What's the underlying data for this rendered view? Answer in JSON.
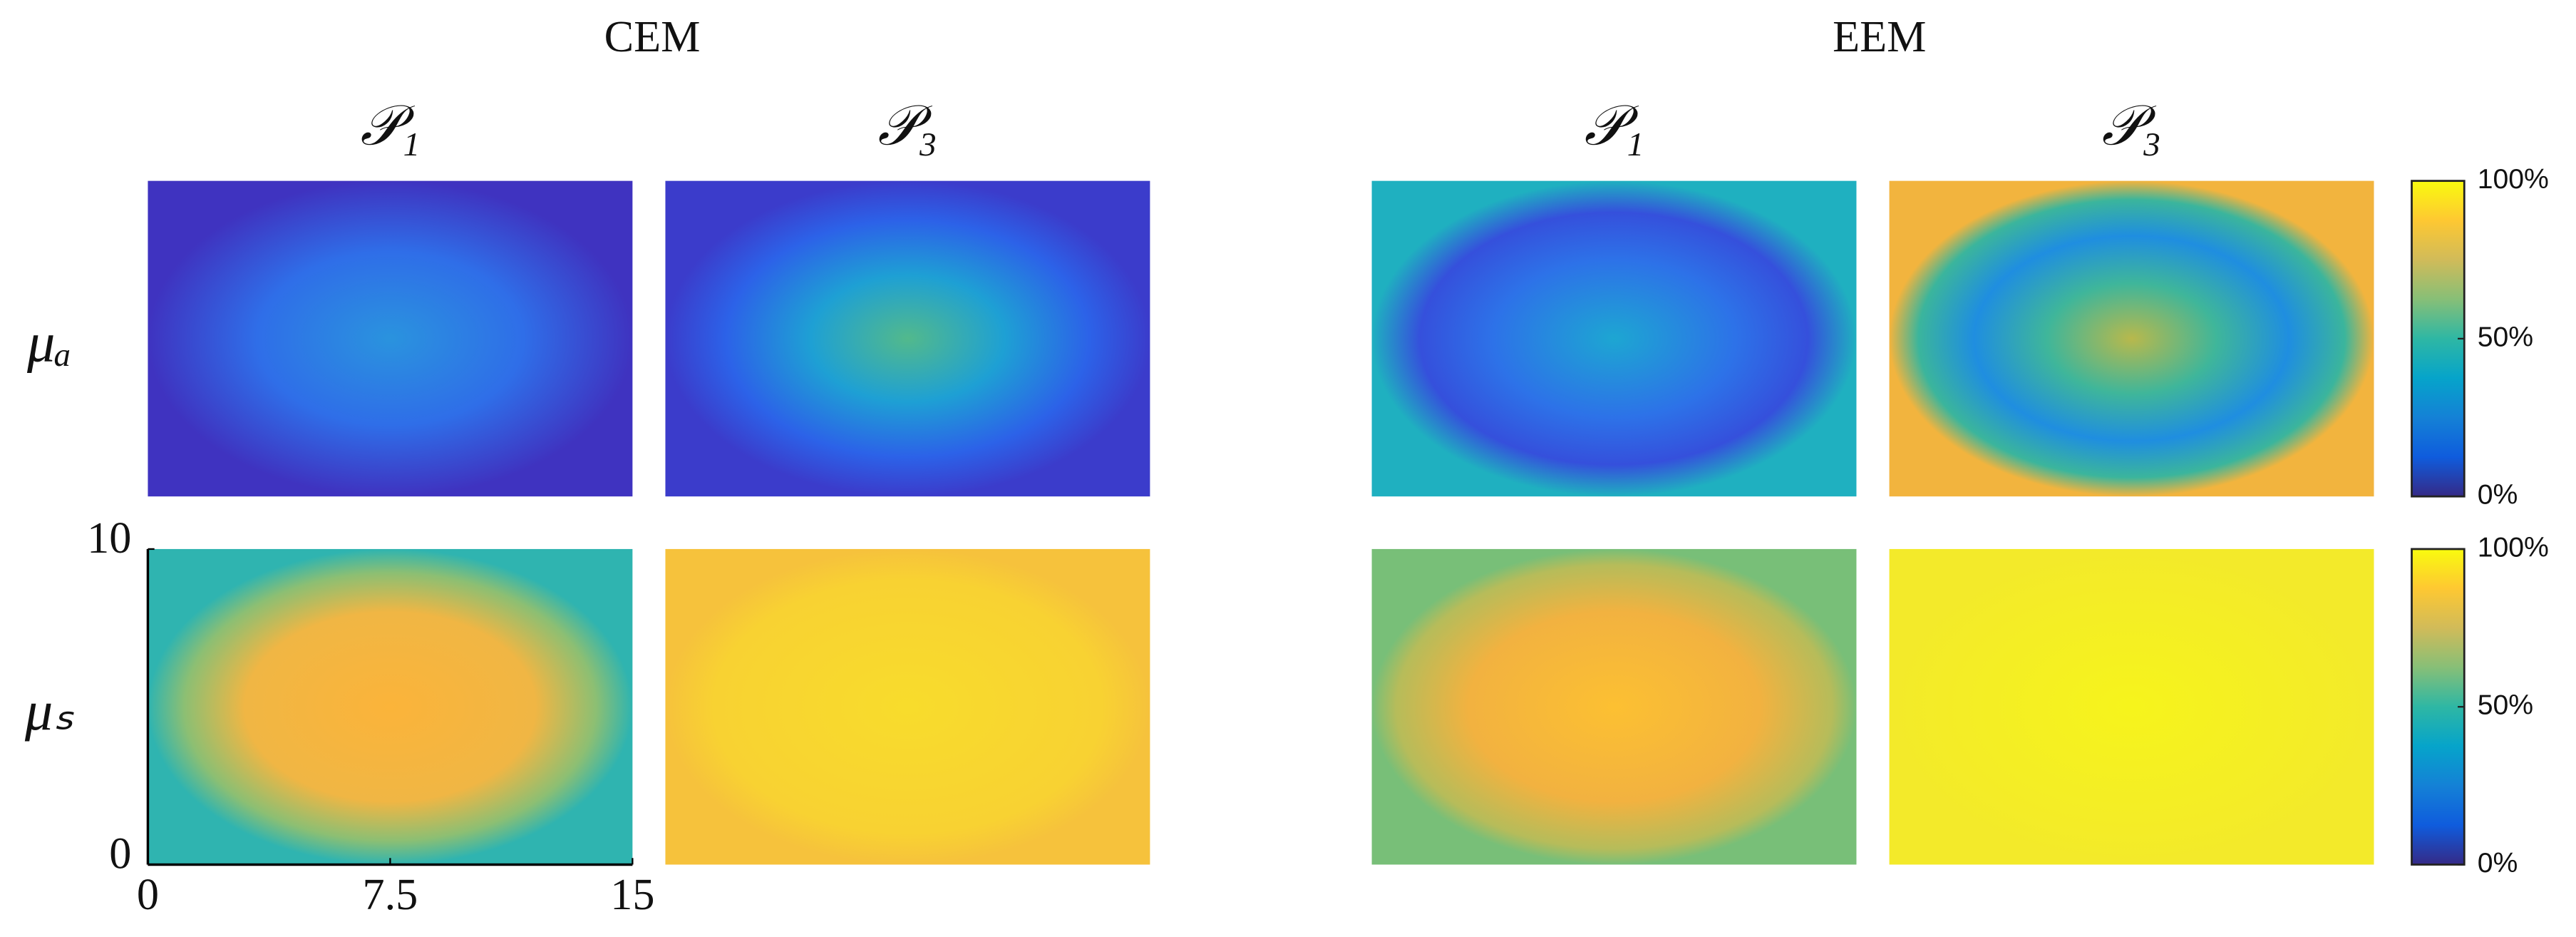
{
  "chart_data": {
    "type": "heatmap-grid",
    "groups": [
      {
        "title": "CEM",
        "panels": [
          "𝒫₁",
          "𝒫₃"
        ]
      },
      {
        "title": "EEM",
        "panels": [
          "𝒫₁",
          "𝒫₃"
        ]
      }
    ],
    "rows": [
      "μₐ",
      "μₛ"
    ],
    "xlim": [
      0,
      15
    ],
    "xticks": [
      0,
      7.5,
      15
    ],
    "ylim": [
      0,
      10
    ],
    "yticks": [
      0,
      10
    ],
    "colorbar": {
      "clim": [
        0,
        100
      ],
      "ticks": [
        {
          "value": 0,
          "label": "0%"
        },
        {
          "value": 50,
          "label": "50%"
        },
        {
          "value": 100,
          "label": "100%"
        }
      ]
    }
  }
}
